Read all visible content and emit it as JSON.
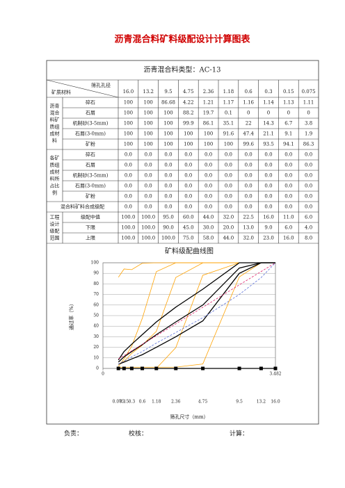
{
  "title": "沥青混合料矿料级配设计计算图表",
  "table": {
    "mix_type": "沥青混合料类型：AC-13",
    "corner_row": "矿质材料",
    "corner_col": "筛孔孔径",
    "sieves": [
      "16.0",
      "13.2",
      "9.5",
      "4.75",
      "2.36",
      "1.18",
      "0.6",
      "0.3",
      "0.15",
      "0.075"
    ],
    "groups": [
      {
        "label": "沥青混合料矿质组成材料",
        "rows": [
          {
            "label": "碎石",
            "cells": [
              "100",
              "100",
              "86.68",
              "4.22",
              "1.21",
              "1.17",
              "1.16",
              "1.14",
              "1.13",
              "1.11"
            ]
          },
          {
            "label": "石屑",
            "cells": [
              "100",
              "100",
              "100",
              "88.2",
              "19.7",
              "0.1",
              "0",
              "0",
              "0",
              "0"
            ]
          },
          {
            "label": "机制砂(3-5mm)",
            "cells": [
              "100",
              "100",
              "100",
              "99.9",
              "86.1",
              "35.1",
              "22",
              "14.3",
              "6.7",
              "3.8"
            ]
          },
          {
            "label": "石屑(3-0mm)",
            "cells": [
              "100",
              "100",
              "100",
              "100",
              "100",
              "91.6",
              "47.4",
              "21.1",
              "9.1",
              "1.9"
            ]
          },
          {
            "label": "矿粉",
            "cells": [
              "100",
              "100",
              "100",
              "100",
              "100",
              "100",
              "99.6",
              "93.5",
              "94.1",
              "86.3"
            ]
          }
        ]
      },
      {
        "label": "各矿质组成材料所占比例",
        "rows": [
          {
            "label": "碎石",
            "cells": [
              "0.0",
              "0.0",
              "0.0",
              "0.0",
              "0.0",
              "0.0",
              "0.0",
              "0.0",
              "0.0",
              "0.0"
            ]
          },
          {
            "label": "石屑",
            "cells": [
              "0.0",
              "0.0",
              "0.0",
              "0.0",
              "0.0",
              "0.0",
              "0.0",
              "0.0",
              "0.0",
              "0.0"
            ]
          },
          {
            "label": "机制砂(3-5mm)",
            "cells": [
              "0.0",
              "0.0",
              "0.0",
              "0.0",
              "0.0",
              "0.0",
              "0.0",
              "0.0",
              "0.0",
              "0.0"
            ]
          },
          {
            "label": "石屑(3-0mm)",
            "cells": [
              "0.0",
              "0.0",
              "0.0",
              "0.0",
              "0.0",
              "0.0",
              "0.0",
              "0.0",
              "0.0",
              "0.0"
            ]
          },
          {
            "label": "矿粉",
            "cells": [
              "0.0",
              "0.0",
              "0.0",
              "0.0",
              "0.0",
              "0.0",
              "0.0",
              "0.0",
              "0.0",
              "0.0"
            ]
          }
        ]
      }
    ],
    "mixture": {
      "label": "混合料矿料合成级配",
      "cells": [
        "0.0",
        "0.0",
        "0.0",
        "0.0",
        "0.0",
        "0.0",
        "0.0",
        "0.0",
        "0.0",
        "0.0"
      ]
    },
    "design": {
      "label": "工程设计级配范围",
      "rows": [
        {
          "label": "级配中值",
          "cells": [
            "100.0",
            "100.0",
            "95.0",
            "60.0",
            "44.0",
            "32.0",
            "22.5",
            "16.0",
            "11.0",
            "6.0"
          ]
        },
        {
          "label": "下限",
          "cells": [
            "100.0",
            "100.0",
            "90.0",
            "45.0",
            "30.0",
            "20.0",
            "13.0",
            "9.0",
            "6.0",
            "4.0"
          ]
        },
        {
          "label": "上限",
          "cells": [
            "100.0",
            "100.0",
            "100.0",
            "75.0",
            "58.0",
            "44.0",
            "32.0",
            "23.0",
            "16.0",
            "8.0"
          ]
        }
      ]
    }
  },
  "chart": {
    "type": "line",
    "title": "矿料级配曲线图",
    "x_label": "筛孔尺寸（mm）",
    "y_label": "通过率（%）",
    "xlim": [
      0,
      3.482
    ],
    "ylim": [
      0,
      100
    ],
    "xticks": [
      0,
      3.482
    ],
    "yticks": [
      0,
      10,
      20,
      30,
      40,
      50,
      60,
      70,
      80,
      90,
      100
    ],
    "x": [
      0.312,
      0.426,
      0.582,
      0.794,
      1.078,
      1.471,
      2.016,
      2.753,
      3.193,
      3.482
    ],
    "x_labels": [
      {
        "value": 0.312,
        "label": "0.075"
      },
      {
        "value": 0.426,
        "label": "0.15"
      },
      {
        "value": 0.582,
        "label": "0.3"
      },
      {
        "value": 0.794,
        "label": "0.6"
      },
      {
        "value": 1.078,
        "label": "1.18"
      },
      {
        "value": 1.471,
        "label": "2.36"
      },
      {
        "value": 2.016,
        "label": "4.75"
      },
      {
        "value": 2.753,
        "label": "9.5"
      },
      {
        "value": 3.193,
        "label": "13.2"
      },
      {
        "value": 3.482,
        "label": "16.0"
      }
    ],
    "series": [
      {
        "color": "#ffa200",
        "values": [
          1.11,
          1.13,
          1.14,
          1.16,
          1.17,
          1.21,
          4.22,
          86.68,
          100,
          100
        ]
      },
      {
        "color": "#ffa200",
        "values": [
          0,
          0,
          0,
          0,
          0.1,
          19.7,
          88.2,
          100,
          100,
          100
        ]
      },
      {
        "color": "#ffa200",
        "values": [
          3.8,
          6.7,
          14.3,
          22,
          35.1,
          86.1,
          99.9,
          100,
          100,
          100
        ]
      },
      {
        "color": "#ffa200",
        "values": [
          1.9,
          9.1,
          21.1,
          47.4,
          91.6,
          100,
          100,
          100,
          100,
          100
        ]
      },
      {
        "color": "#ffa200",
        "values": [
          86.3,
          94.1,
          93.5,
          99.6,
          100,
          100,
          100,
          100,
          100,
          100
        ]
      },
      {
        "color": "#000000",
        "values": [
          8,
          16,
          23,
          32,
          44,
          58,
          75,
          100,
          100,
          100
        ]
      },
      {
        "color": "#000000",
        "values": [
          6,
          11,
          16,
          22.5,
          32,
          44,
          60,
          95,
          100,
          100
        ]
      },
      {
        "color": "#000000",
        "values": [
          4,
          6,
          9,
          13,
          20,
          30,
          45,
          90,
          100,
          100
        ]
      },
      {
        "color": "#e0206a",
        "dashed": true,
        "values": [
          9,
          12.2,
          16.7,
          22.8,
          31,
          42.2,
          57.9,
          79.1,
          91.7,
          100
        ]
      },
      {
        "color": "#5a6fd8",
        "dashed": true,
        "values": [
          4,
          7,
          11,
          16,
          24,
          34,
          48,
          70,
          86,
          100
        ]
      },
      {
        "color": "#000000",
        "marker": "square",
        "values": [
          0,
          0,
          0,
          0,
          0,
          0,
          0,
          0,
          0,
          0
        ]
      }
    ]
  },
  "footer": [
    "负责：",
    "校核：",
    "计算："
  ]
}
